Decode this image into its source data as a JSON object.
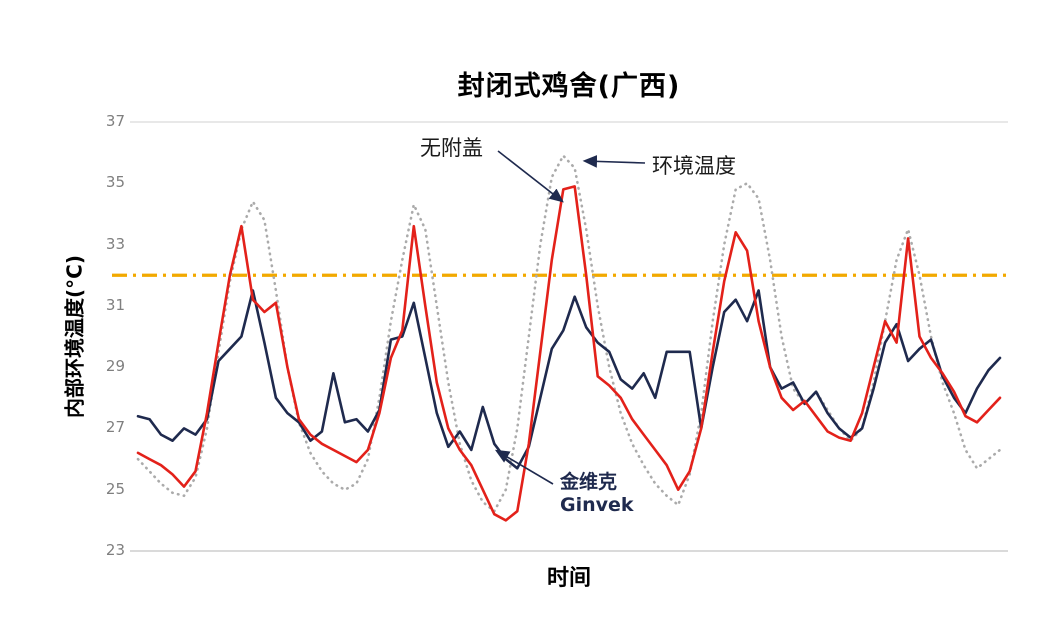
{
  "chart": {
    "title": "封闭式鸡舍(广西)",
    "ylabel": "内部环境温度(°C)",
    "xlabel": "时间",
    "annotations": {
      "no_cover_label": "无附盖",
      "ambient_label": "环境温度",
      "ginvek_cn": "金维克",
      "ginvek_en": "Ginvek"
    },
    "colors": {
      "no_cover": "#E3211A",
      "ginvek": "#1F2A4E",
      "ambient": "#ABABAB",
      "threshold": "#F2A900"
    }
  },
  "chart_data": {
    "type": "line",
    "title": "封闭式鸡舍(广西)",
    "xlabel": "时间",
    "ylabel": "内部环境温度(°C)",
    "ylim": [
      23,
      37
    ],
    "yticks": [
      37,
      35,
      33,
      31,
      29,
      27,
      25,
      23
    ],
    "grid": false,
    "legend_position": "inline-annotations",
    "threshold": {
      "value": 32,
      "style": "dash-dot",
      "color": "#F2A900"
    },
    "series": [
      {
        "name": "环境温度",
        "style": "dotted",
        "color": "#ABABAB",
        "values": [
          26.0,
          25.6,
          25.2,
          24.9,
          24.8,
          25.4,
          27.0,
          29.5,
          31.8,
          33.5,
          34.4,
          33.8,
          31.5,
          29.0,
          27.2,
          26.2,
          25.6,
          25.2,
          25.0,
          25.2,
          26.0,
          28.0,
          30.5,
          32.5,
          34.3,
          33.5,
          31.0,
          28.5,
          26.5,
          25.3,
          24.6,
          24.3,
          25.0,
          27.0,
          30.0,
          33.0,
          35.2,
          35.9,
          35.5,
          33.5,
          31.0,
          29.0,
          27.5,
          26.5,
          25.8,
          25.2,
          24.8,
          24.5,
          25.5,
          27.5,
          30.5,
          33.0,
          34.8,
          35.0,
          34.5,
          32.5,
          30.0,
          28.3,
          27.8,
          28.2,
          27.6,
          27.0,
          26.6,
          27.0,
          28.5,
          30.5,
          32.5,
          33.5,
          32.0,
          30.0,
          28.5,
          27.5,
          26.3,
          25.7,
          26.0,
          26.3
        ]
      },
      {
        "name": "金维克 Ginvek",
        "style": "solid",
        "color": "#1F2A4E",
        "values": [
          27.4,
          27.3,
          26.8,
          26.6,
          27.0,
          26.8,
          27.3,
          29.2,
          29.6,
          30.0,
          31.5,
          29.8,
          28.0,
          27.5,
          27.2,
          26.6,
          26.9,
          28.8,
          27.2,
          27.3,
          26.9,
          27.6,
          29.9,
          30.0,
          31.1,
          29.3,
          27.5,
          26.4,
          26.9,
          26.3,
          27.7,
          26.5,
          26.0,
          25.7,
          26.4,
          28.0,
          29.6,
          30.2,
          31.3,
          30.3,
          29.8,
          29.5,
          28.6,
          28.3,
          28.8,
          28.0,
          29.5,
          29.5,
          29.5,
          27.0,
          29.0,
          30.8,
          31.2,
          30.5,
          31.5,
          29.0,
          28.3,
          28.5,
          27.8,
          28.2,
          27.5,
          27.0,
          26.7,
          27.0,
          28.3,
          29.8,
          30.4,
          29.2,
          29.6,
          29.9,
          28.7,
          28.0,
          27.5,
          28.3,
          28.9,
          29.3
        ]
      },
      {
        "name": "无附盖",
        "style": "solid",
        "color": "#E3211A",
        "values": [
          26.2,
          26.0,
          25.8,
          25.5,
          25.1,
          25.6,
          27.5,
          29.8,
          32.0,
          33.6,
          31.2,
          30.8,
          31.1,
          29.0,
          27.3,
          26.8,
          26.5,
          26.3,
          26.1,
          25.9,
          26.3,
          27.5,
          29.3,
          30.2,
          33.6,
          31.0,
          28.5,
          27.0,
          26.3,
          25.8,
          25.0,
          24.2,
          24.0,
          24.3,
          26.5,
          29.5,
          32.5,
          34.8,
          34.9,
          32.0,
          28.7,
          28.4,
          28.0,
          27.3,
          26.8,
          26.3,
          25.8,
          25.0,
          25.6,
          27.0,
          29.5,
          31.8,
          33.4,
          32.8,
          30.5,
          29.0,
          28.0,
          27.6,
          27.9,
          27.4,
          26.9,
          26.7,
          26.6,
          27.5,
          29.0,
          30.5,
          29.8,
          33.2,
          30.0,
          29.3,
          28.8,
          28.2,
          27.4,
          27.2,
          27.6,
          28.0
        ]
      }
    ]
  }
}
